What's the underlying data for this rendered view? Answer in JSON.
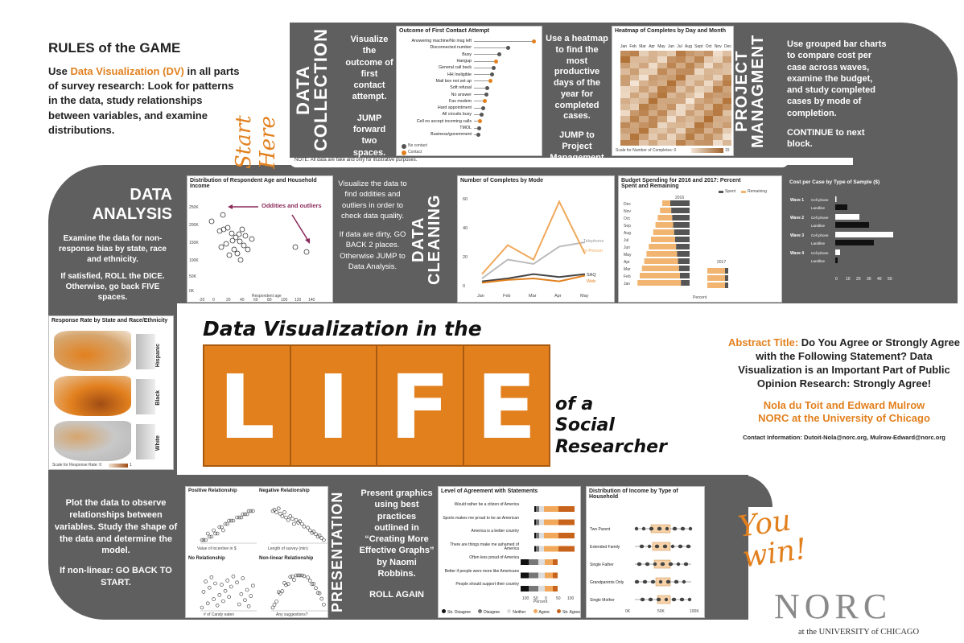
{
  "rules": {
    "heading": "RULES of the GAME",
    "line1_pre": "Use",
    "line1_highlight": "Data Visualization (DV)",
    "line1_post": "in all parts of survey research: Look for patterns in the data, study relationships between variables, and examine distributions."
  },
  "start_here": "Start Here",
  "data_collection": {
    "label": "DATA COLLECTION",
    "instruction": "Visualize the outcome of first contact attempt.",
    "action": "JUMP forward two spaces.",
    "note": "NOTE: All data are fake and only for illustrative purposes."
  },
  "first_contact_chart": {
    "title": "Outcome of First Contact Attempt",
    "categories": [
      "Answering machine/No msg left",
      "Disconnected number",
      "Busy",
      "Hangup",
      "General call back",
      "HH Ineligible",
      "Mail box not set up",
      "Soft refusal",
      "No answer",
      "Fax modem",
      "Hard appointment",
      "All circuits busy",
      "Cell no accept incoming calls",
      "TMOL",
      "Business/government"
    ],
    "x_ticks": [
      "0%",
      "5%",
      "10%",
      "15%",
      "20%"
    ],
    "legend": [
      "No contact",
      "Contact"
    ]
  },
  "heatmap_instruction": {
    "text": "Use a heatmap to find the most productive days of the year for completed cases.",
    "action": "JUMP to Project Management"
  },
  "heatmap_chart": {
    "title": "Heatmap of Completes by Day and Month",
    "months": [
      "Jan",
      "Feb",
      "Mar",
      "Apr",
      "May",
      "Jun",
      "Jul",
      "Aug",
      "Sept",
      "Oct",
      "Nov",
      "Dec"
    ],
    "scale_label": "Scale for Number of Completes: 0",
    "scale_max": "15"
  },
  "project_management": {
    "label": "PROJECT MANAGMENT",
    "text": "Use grouped bar charts to compare cost per case across waves, examine the budget, and study completed cases by mode of completion.",
    "action": "CONTINUE to next block."
  },
  "data_analysis": {
    "label": "DATA ANALYSIS",
    "text": "Examine the data for non-response bias by state, race and ethnicity.",
    "action": "If satisfied, ROLL the DICE. Otherwise, go back FIVE spaces."
  },
  "age_income_chart": {
    "title": "Distribution of Respondent Age and Household Income",
    "annotation": "Oddities and outliers",
    "y_ticks": [
      "250K",
      "200K",
      "150K",
      "100K",
      "50K",
      "0K"
    ],
    "x_ticks": [
      "-20",
      "0",
      "20",
      "40",
      "60",
      "80",
      "100",
      "120",
      "140"
    ],
    "xlabel": "Respondent age",
    "ylabel": "Income"
  },
  "cleaning_instruction": {
    "text": "Visualize the data to find oddities and outliers in order to check data quality.",
    "action": "If data are dirty, GO BACK 2 places. Otherwise JUMP to Data Analysis."
  },
  "data_cleaning": {
    "label": "DATA CLEANING"
  },
  "mode_chart": {
    "title": "Number of Completes by Mode",
    "x_ticks": [
      "Jan",
      "Feb",
      "Mar",
      "Apr",
      "May"
    ],
    "y_ticks": [
      "60",
      "40",
      "20",
      "0"
    ],
    "series_labels": [
      "Telephone",
      "In-Person",
      "SAQ",
      "Web"
    ]
  },
  "budget_chart": {
    "title": "Budget Spending for 2016 and 2017: Percent Spent and Remaining",
    "legend": [
      "Spent",
      "Remaining"
    ],
    "year1": "2016",
    "year2": "2017",
    "months": [
      "Dec",
      "Nov",
      "Oct",
      "Sep",
      "Aug",
      "Jul",
      "Jun",
      "May",
      "Apr",
      "Mar",
      "Feb",
      "Jan"
    ],
    "x_ticks": "100 50 0",
    "xlabel": "Percent"
  },
  "cost_chart": {
    "title": "Cost per Case by Type of Sample ($)",
    "waves": [
      "Wave 1",
      "Wave 2",
      "Wave 3",
      "Wave 4"
    ],
    "types": [
      "Cell phone",
      "Landline"
    ],
    "x_ticks": [
      "0",
      "10",
      "20",
      "30",
      "40",
      "50"
    ]
  },
  "response_rate_chart": {
    "title": "Response Rate by State and Race/Ethnicity",
    "groups": [
      "Hispanic",
      "Black",
      "White"
    ],
    "scale_label": "Scale for Response Rate: 0",
    "scale_max": "1"
  },
  "main_title": {
    "line1": "Data Visualization in the",
    "letters": [
      "L",
      "I",
      "F",
      "E"
    ],
    "tail": [
      "of a",
      "Social",
      "Researcher"
    ]
  },
  "abstract": {
    "label": "Abstract Title:",
    "text": "Do You Agree or Strongly Agree with the Following Statement? Data Visualization is an Important Part of Public Opinion Research: Strongly Agree!",
    "authors": "Nola du Toit and Edward Mulrow",
    "org": "NORC at the University of Chicago",
    "contact": "Contact Information: Dutoit-Nola@norc.org, Mulrow-Edward@norc.org"
  },
  "model_instruction": {
    "text": "Plot the data to observe relationships between variables. Study the shape of the data and determine the model.",
    "action": "If non-linear: GO BACK TO START."
  },
  "scatter_panels": {
    "p1": {
      "title": "Positive Relationship",
      "xlabel": "Value of incentive in $",
      "ylabel": "Response rate"
    },
    "p2": {
      "title": "Negative Relationship",
      "xlabel": "Length of survey (min)",
      "ylabel": "Response rate"
    },
    "p3": {
      "title": "No Relationship",
      "xlabel": "# of Candy eaten",
      "ylabel": "Response rate"
    },
    "p4": {
      "title": "Non-linear Relationship",
      "xlabel": "Any suggestions?",
      "ylabel": "Response rate"
    }
  },
  "presentation": {
    "label": "PRESENTATION",
    "text": "Present graphics using best practices outlined in “Creating More Effective Graphs” by Naomi Robbins.",
    "action": "ROLL AGAIN"
  },
  "agreement_chart": {
    "title": "Level of Agreement with Statements",
    "statements": [
      "Would rather be a citizen of America",
      "Sports makes me proud to be an American",
      "America is a better country",
      "There are things make me ashamed of America",
      "Often less proud of America",
      "Better if people were more like Americans",
      "People should support their country"
    ],
    "x_ticks": [
      "100",
      "50",
      "0",
      "50",
      "100"
    ],
    "xlabel": "Percent",
    "legend": [
      "Str. Disagree",
      "Disagree",
      "Neither",
      "Agree",
      "Str. Agree"
    ]
  },
  "income_chart": {
    "title": "Distribution of Income by Type of Household",
    "categories": [
      "Two Parent",
      "Extended Family",
      "Single Father",
      "Grandparents Only",
      "Single Mother"
    ],
    "x_ticks": [
      "0K",
      "50K",
      "100K"
    ]
  },
  "you_win": "You win!",
  "norc": {
    "letters": "NORC",
    "sub": "at the UNIVERSITY of CHICAGO"
  },
  "colors": {
    "orange": "#e2801e",
    "gray": "#5f5f5f",
    "dark": "#3d3d3d"
  }
}
